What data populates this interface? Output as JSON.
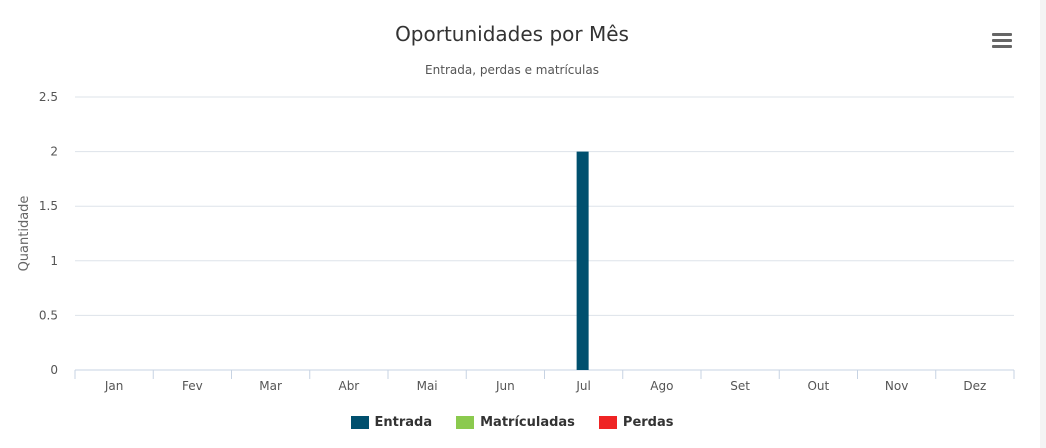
{
  "chart_data": {
    "type": "bar",
    "title": "Oportunidades por Mês",
    "subtitle": "Entrada, perdas e matrículas",
    "ylabel": "Quantidade",
    "xlabel": "",
    "categories": [
      "Jan",
      "Fev",
      "Mar",
      "Abr",
      "Mai",
      "Jun",
      "Jul",
      "Ago",
      "Set",
      "Out",
      "Nov",
      "Dez"
    ],
    "ylim": [
      0,
      2.5
    ],
    "yticks": [
      "0",
      "0.5",
      "1",
      "1.5",
      "2",
      "2.5"
    ],
    "grid": true,
    "legend_position": "bottom",
    "series": [
      {
        "name": "Entrada",
        "color": "#00506e",
        "values": [
          0,
          0,
          0,
          0,
          0,
          0,
          2,
          0,
          0,
          0,
          0,
          0
        ]
      },
      {
        "name": "Matrículadas",
        "color": "#8bca4e",
        "values": [
          0,
          0,
          0,
          0,
          0,
          0,
          0,
          0,
          0,
          0,
          0,
          0
        ]
      },
      {
        "name": "Perdas",
        "color": "#ef2424",
        "values": [
          0,
          0,
          0,
          0,
          0,
          0,
          0,
          0,
          0,
          0,
          0,
          0
        ]
      }
    ]
  },
  "menu": {
    "icon": "hamburger-menu-icon"
  }
}
